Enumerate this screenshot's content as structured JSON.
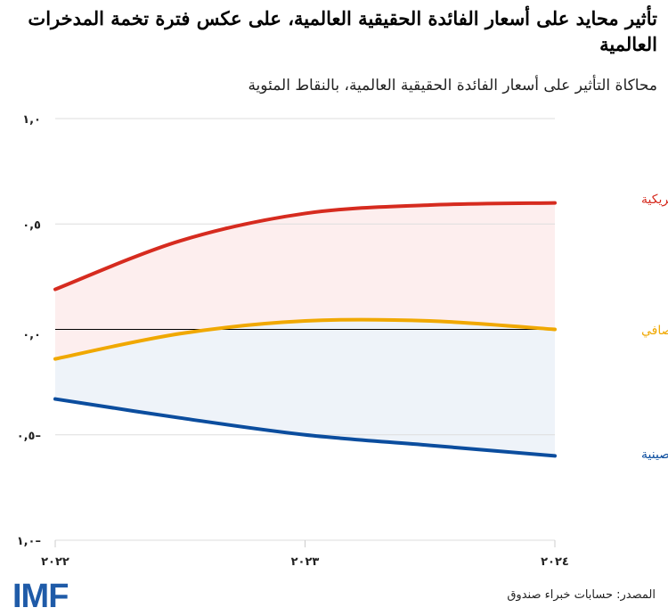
{
  "title": "تأثير محايد على أسعار الفائدة الحقيقية العالمية، على عكس فترة تخمة المدخرات العالمية",
  "subtitle": "محاكاة التأثير على أسعار الفائدة الحقيقية العالمية، بالنقاط المئوية",
  "source": "المصدر: حسابات خبراء صندوق",
  "logo": "IMF",
  "chart_data": {
    "type": "line",
    "x": [
      2022,
      2022.5,
      2023,
      2023.5,
      2024
    ],
    "xticks": [
      2022,
      2023,
      2024
    ],
    "xtick_labels": [
      "٢٠٢٢",
      "٢٠٢٣",
      "٢٠٢٤"
    ],
    "ylim": [
      -1.0,
      1.0
    ],
    "yticks": [
      1.0,
      0.5,
      0.0,
      -0.5,
      -1.0
    ],
    "ytick_labels": [
      "١,٠",
      "٠,٥",
      "٠,٠",
      "٠,٥–",
      "١,٠–"
    ],
    "grid": true,
    "legend": "right-end labels",
    "series": [
      {
        "name": "المكونات الأمريكية",
        "color": "#d62b1f",
        "values": [
          0.19,
          0.42,
          0.55,
          0.59,
          0.6
        ]
      },
      {
        "name": "الصافي",
        "color": "#f0a800",
        "values": [
          -0.14,
          -0.02,
          0.04,
          0.04,
          0.0
        ]
      },
      {
        "name": "المكونات الصينية",
        "color": "#0b4d9e",
        "values": [
          -0.33,
          -0.42,
          -0.5,
          -0.55,
          -0.6
        ]
      }
    ],
    "fill_colors": {
      "upper": "#fdeeee",
      "lower": "#eef3f9"
    }
  }
}
